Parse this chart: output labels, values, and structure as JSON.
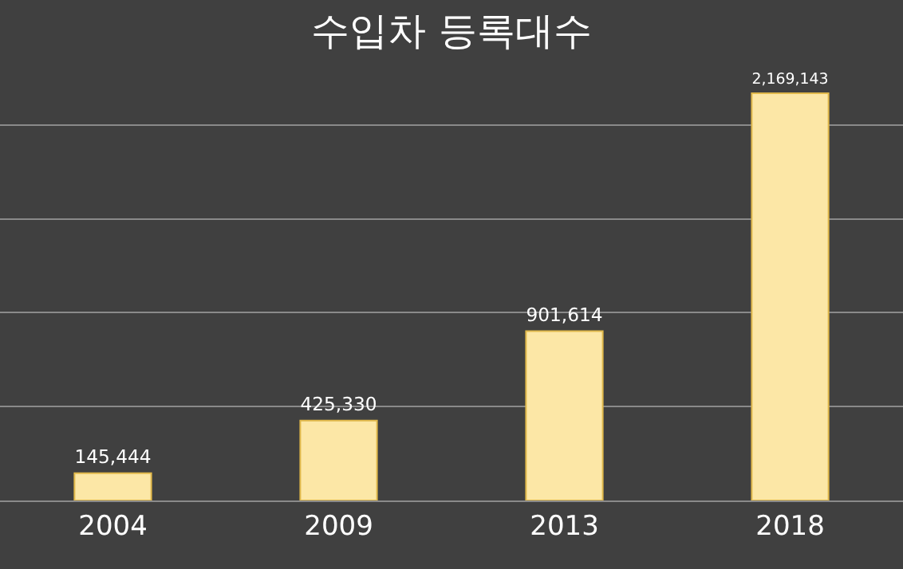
{
  "chart_data": {
    "type": "bar",
    "title": "수입차 등록대수",
    "categories": [
      "2004",
      "2009",
      "2013",
      "2018"
    ],
    "values": [
      145444,
      425330,
      901614,
      2169143
    ],
    "value_labels": [
      "145,444",
      "425,330",
      "901,614",
      "2,169,143"
    ],
    "color": "#fce7a6",
    "grid": "y",
    "tick_labels": "x"
  }
}
